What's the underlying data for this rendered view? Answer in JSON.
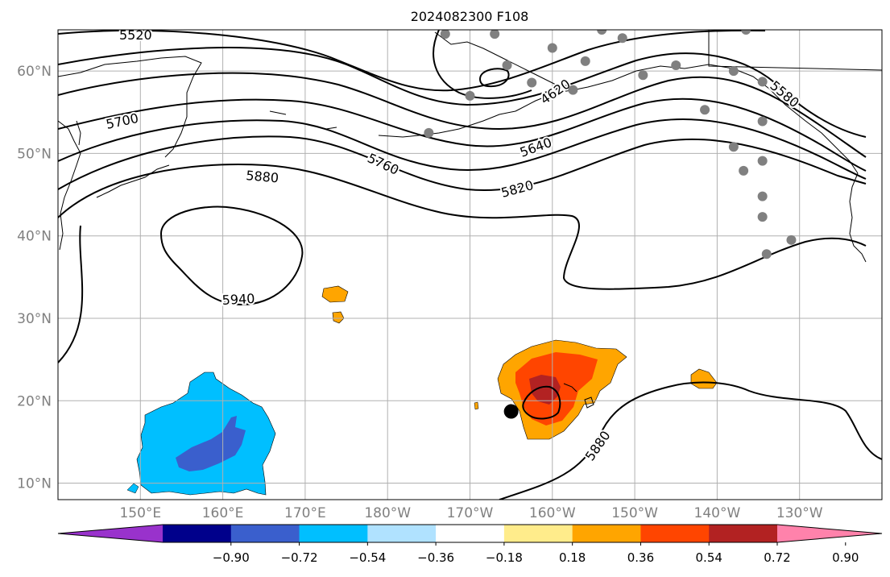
{
  "title": "2024082300 F108",
  "axes": {
    "lat_labels": [
      "60°N",
      "50°N",
      "40°N",
      "30°N",
      "20°N",
      "10°N"
    ],
    "lon_labels": [
      "150°E",
      "160°E",
      "170°E",
      "180°W",
      "170°W",
      "160°W",
      "150°W",
      "140°W",
      "130°W"
    ],
    "lon_range": [
      140,
      240
    ],
    "lat_range": [
      8,
      65
    ]
  },
  "contours": {
    "labels": [
      "5520",
      "5700",
      "5760",
      "5640",
      "5820",
      "5880",
      "5940",
      "5880",
      "4620",
      "5580"
    ],
    "label_bounds": [
      "5880",
      "5940"
    ]
  },
  "colorbar": {
    "ticks": [
      "−0.90",
      "−0.72",
      "−0.54",
      "−0.36",
      "−0.18",
      "0.18",
      "0.36",
      "0.54",
      "0.72",
      "0.90"
    ],
    "colors": [
      "#9932cc",
      "#00008b",
      "#3a5fcd",
      "#00bfff",
      "#b0e2ff",
      "#ffffff",
      "#ffec8b",
      "#ffa500",
      "#ff4500",
      "#b22222",
      "#ff82ab"
    ]
  },
  "markers": {
    "storm_center": {
      "lon": 195,
      "lat": 18.7
    },
    "stations": [
      {
        "lon": 185,
        "lat": 52.5
      },
      {
        "lon": 187,
        "lat": 64.5
      },
      {
        "lon": 193,
        "lat": 64.5
      },
      {
        "lon": 194.5,
        "lat": 60.7
      },
      {
        "lon": 190,
        "lat": 57
      },
      {
        "lon": 197.5,
        "lat": 58.6
      },
      {
        "lon": 200,
        "lat": 62.8
      },
      {
        "lon": 202.5,
        "lat": 57.7
      },
      {
        "lon": 204,
        "lat": 61.2
      },
      {
        "lon": 206,
        "lat": 65
      },
      {
        "lon": 208.5,
        "lat": 64
      },
      {
        "lon": 211,
        "lat": 59.5
      },
      {
        "lon": 215,
        "lat": 60.7
      },
      {
        "lon": 218.5,
        "lat": 55.3
      },
      {
        "lon": 222,
        "lat": 60
      },
      {
        "lon": 223.5,
        "lat": 65
      },
      {
        "lon": 225.5,
        "lat": 58.7
      },
      {
        "lon": 225.5,
        "lat": 53.9
      },
      {
        "lon": 225.5,
        "lat": 49.1
      },
      {
        "lon": 225.5,
        "lat": 44.8
      },
      {
        "lon": 225.5,
        "lat": 42.3
      },
      {
        "lon": 222,
        "lat": 50.8
      },
      {
        "lon": 223.2,
        "lat": 47.9
      },
      {
        "lon": 226,
        "lat": 37.8
      },
      {
        "lon": 229,
        "lat": 39.5
      }
    ],
    "station_color": "#808080"
  }
}
